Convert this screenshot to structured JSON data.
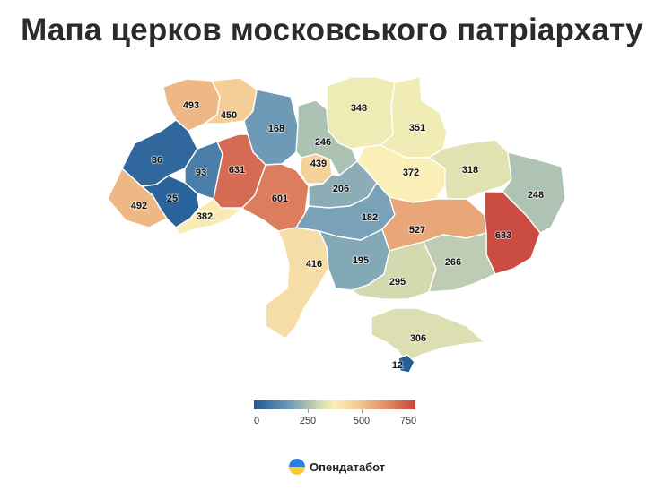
{
  "title": "Мапа церков московського патріархату",
  "legend": {
    "ticks": [
      "0",
      "250",
      "500",
      "750"
    ],
    "min": 0,
    "max": 750
  },
  "brand": {
    "name": "Опендатабот",
    "logo_icon": "opendatabot-logo-icon"
  },
  "colors": {
    "scale": [
      "#1f5a96",
      "#6f9bb8",
      "#d8ddb0",
      "#faf1b8",
      "#f2c48f",
      "#e08a64",
      "#c8423b"
    ]
  },
  "chart_data": {
    "type": "choropleth",
    "scale_range": [
      0,
      750
    ],
    "regions": [
      {
        "name": "Volyn",
        "value": 493
      },
      {
        "name": "Rivne",
        "value": 450
      },
      {
        "name": "Zhytomyr",
        "value": 168
      },
      {
        "name": "Kyiv",
        "value": 246
      },
      {
        "name": "Kyiv city",
        "value": 439
      },
      {
        "name": "Chernihiv",
        "value": 348
      },
      {
        "name": "Sumy",
        "value": 351
      },
      {
        "name": "Poltava",
        "value": 372
      },
      {
        "name": "Kharkiv",
        "value": 318
      },
      {
        "name": "Luhansk",
        "value": 248
      },
      {
        "name": "Lviv",
        "value": 36
      },
      {
        "name": "Ternopil",
        "value": 93
      },
      {
        "name": "Khmelnytskyi",
        "value": 631
      },
      {
        "name": "Vinnytsia",
        "value": 601
      },
      {
        "name": "Ivano-Frankivsk",
        "value": 25
      },
      {
        "name": "Zakarpattia",
        "value": 492
      },
      {
        "name": "Chernivtsi",
        "value": 382
      },
      {
        "name": "Cherkasy",
        "value": 206
      },
      {
        "name": "Kirovohrad",
        "value": 182
      },
      {
        "name": "Dnipropetrovsk",
        "value": 527
      },
      {
        "name": "Donetsk",
        "value": 683
      },
      {
        "name": "Odesa",
        "value": 416
      },
      {
        "name": "Mykolaiv",
        "value": 195
      },
      {
        "name": "Kherson",
        "value": 295
      },
      {
        "name": "Zaporizhzhia",
        "value": 266
      },
      {
        "name": "Crimea",
        "value": 306
      },
      {
        "name": "Sevastopol",
        "value": 12
      }
    ]
  }
}
